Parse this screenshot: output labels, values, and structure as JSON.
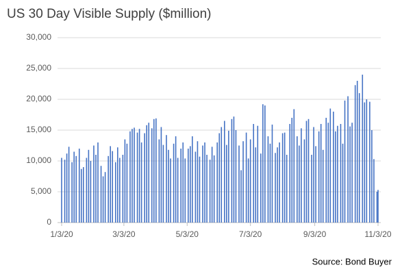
{
  "chart_data": {
    "type": "bar",
    "title": "US 30 Day Visible Supply ($million)",
    "source": "Source: Bond Buyer",
    "color": "#4472c4",
    "grid": true,
    "x": [
      "1/3/20",
      "1/6/20",
      "1/8/20",
      "1/10/20",
      "1/13/20",
      "1/15/20",
      "1/17/20",
      "1/20/20",
      "1/22/20",
      "1/24/20",
      "1/27/20",
      "1/29/20",
      "1/31/20",
      "2/3/20",
      "2/5/20",
      "2/7/20",
      "2/10/20",
      "2/12/20",
      "2/14/20",
      "2/17/20",
      "2/19/20",
      "2/21/20",
      "2/24/20",
      "2/26/20",
      "2/28/20",
      "3/2/20",
      "3/4/20",
      "3/6/20",
      "3/9/20",
      "3/11/20",
      "3/13/20",
      "3/16/20",
      "3/18/20",
      "3/20/20",
      "3/23/20",
      "3/25/20",
      "3/27/20",
      "3/30/20",
      "4/1/20",
      "4/3/20",
      "4/6/20",
      "4/8/20",
      "4/10/20",
      "4/13/20",
      "4/15/20",
      "4/17/20",
      "4/20/20",
      "4/22/20",
      "4/24/20",
      "4/27/20",
      "4/29/20",
      "5/1/20",
      "5/4/20",
      "5/6/20",
      "5/8/20",
      "5/11/20",
      "5/13/20",
      "5/15/20",
      "5/18/20",
      "5/20/20",
      "5/22/20",
      "5/25/20",
      "5/27/20",
      "5/29/20",
      "6/1/20",
      "6/3/20",
      "6/5/20",
      "6/8/20",
      "6/10/20",
      "6/12/20",
      "6/15/20",
      "6/17/20",
      "6/19/20",
      "6/22/20",
      "6/24/20",
      "6/26/20",
      "6/29/20",
      "7/1/20",
      "7/3/20",
      "7/6/20",
      "7/8/20",
      "7/10/20",
      "7/13/20",
      "7/15/20",
      "7/17/20",
      "7/20/20",
      "7/22/20",
      "7/24/20",
      "7/27/20",
      "7/29/20",
      "7/31/20",
      "8/3/20",
      "8/5/20",
      "8/7/20",
      "8/10/20",
      "8/12/20",
      "8/14/20",
      "8/17/20",
      "8/19/20",
      "8/21/20",
      "8/24/20",
      "8/26/20",
      "8/28/20",
      "8/31/20",
      "9/2/20",
      "9/4/20",
      "9/7/20",
      "9/9/20",
      "9/11/20",
      "9/14/20",
      "9/16/20",
      "9/18/20",
      "9/21/20",
      "9/23/20",
      "9/25/20",
      "9/28/20",
      "9/30/20",
      "10/2/20",
      "10/5/20",
      "10/7/20",
      "10/9/20",
      "10/12/20",
      "10/14/20",
      "10/16/20",
      "10/19/20",
      "10/21/20",
      "10/23/20",
      "10/26/20",
      "10/28/20",
      "10/30/20",
      "11/2/20",
      "11/3/20"
    ],
    "values": [
      10500,
      10200,
      11200,
      12300,
      9800,
      11500,
      10800,
      12000,
      8700,
      9000,
      10500,
      11800,
      10000,
      12500,
      11000,
      13000,
      9200,
      7500,
      8200,
      10800,
      12400,
      11600,
      9800,
      12200,
      10500,
      11000,
      13500,
      12800,
      14800,
      15200,
      15400,
      14600,
      15200,
      13000,
      14500,
      15800,
      16200,
      15300,
      16800,
      16900,
      13500,
      15500,
      12600,
      14200,
      11800,
      10400,
      12800,
      14000,
      10500,
      12000,
      13000,
      10400,
      12000,
      12400,
      14000,
      11500,
      13200,
      10700,
      12500,
      13000,
      11000,
      10200,
      12300,
      10900,
      13000,
      14500,
      15500,
      16500,
      12600,
      14900,
      16800,
      17200,
      15000,
      12500,
      8500,
      13200,
      14600,
      10400,
      13500,
      16000,
      12200,
      15700,
      11200,
      19200,
      19000,
      14000,
      12800,
      15900,
      11300,
      12200,
      13000,
      14500,
      14600,
      11000,
      16000,
      17000,
      18400,
      14000,
      12500,
      15300,
      13500,
      16500,
      16800,
      11000,
      15500,
      12400,
      14800,
      16000,
      11800,
      17000,
      16200,
      18500,
      18000,
      14800,
      15700,
      16000,
      12800,
      19800,
      20500,
      15600,
      16200,
      22300,
      23000,
      21000,
      24000,
      19500,
      20000,
      19600,
      15000,
      10300,
      5000,
      5300
    ],
    "xlim": [
      "1/3/20",
      "11/3/20"
    ],
    "xticks": [
      "1/3/20",
      "3/3/20",
      "5/3/20",
      "7/3/20",
      "9/3/20",
      "11/3/20"
    ],
    "ylim": [
      0,
      30000
    ],
    "yticks": [
      0,
      {
        "value": 5000,
        "label": "5,000"
      },
      {
        "value": 10000,
        "label": "10,000"
      },
      {
        "value": 15000,
        "label": "15,000"
      },
      {
        "value": 20000,
        "label": "20,000"
      },
      {
        "value": 25000,
        "label": "25,000"
      },
      {
        "value": 30000,
        "label": "30,000"
      }
    ]
  }
}
